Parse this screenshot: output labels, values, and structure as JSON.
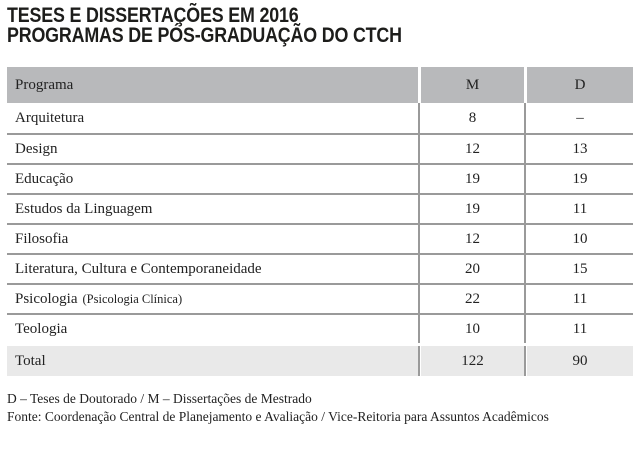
{
  "title": {
    "line1": "TESES E DISSERTAÇÕES EM 2016",
    "line2": "PROGRAMAS DE PÓS-GRADUAÇÃO DO CTCH"
  },
  "table": {
    "headers": {
      "program": "Programa",
      "m": "M",
      "d": "D"
    },
    "rows": [
      {
        "program": "Arquitetura",
        "program_note": "",
        "m": "8",
        "d": "–"
      },
      {
        "program": "Design",
        "program_note": "",
        "m": "12",
        "d": "13"
      },
      {
        "program": "Educação",
        "program_note": "",
        "m": "19",
        "d": "19"
      },
      {
        "program": "Estudos da Linguagem",
        "program_note": "",
        "m": "19",
        "d": "11"
      },
      {
        "program": "Filosofia",
        "program_note": "",
        "m": "12",
        "d": "10"
      },
      {
        "program": "Literatura, Cultura e Contemporaneidade",
        "program_note": "",
        "m": "20",
        "d": "15"
      },
      {
        "program": "Psicologia",
        "program_note": "(Psicologia Clínica)",
        "m": "22",
        "d": "11"
      },
      {
        "program": "Teologia",
        "program_note": "",
        "m": "10",
        "d": "11"
      }
    ],
    "total": {
      "label": "Total",
      "m": "122",
      "d": "90"
    }
  },
  "footnotes": {
    "legend": "D – Teses de Doutorado  /  M – Dissertações de Mestrado",
    "source": "Fonte: Coordenação Central de Planejamento e Avaliação / Vice-Reitoria para Assuntos Acadêmicos"
  },
  "colors": {
    "header_bg": "#b8b9bb",
    "total_bg": "#e9e9e9",
    "border": "#9a9a9a",
    "text": "#222222",
    "title": "#1d1d1b"
  },
  "chart_data": {
    "type": "table",
    "title": "TESES E DISSERTAÇÕES EM 2016 — PROGRAMAS DE PÓS-GRADUAÇÃO DO CTCH",
    "columns": [
      "Programa",
      "M",
      "D"
    ],
    "categories": [
      "Arquitetura",
      "Design",
      "Educação",
      "Estudos da Linguagem",
      "Filosofia",
      "Literatura, Cultura e Contemporaneidade",
      "Psicologia (Psicologia Clínica)",
      "Teologia"
    ],
    "series": [
      {
        "name": "M (Dissertações de Mestrado)",
        "values": [
          8,
          12,
          19,
          19,
          12,
          20,
          22,
          10
        ]
      },
      {
        "name": "D (Teses de Doutorado)",
        "values": [
          null,
          13,
          19,
          11,
          10,
          15,
          11,
          11
        ]
      }
    ],
    "totals": {
      "M": 122,
      "D": 90
    },
    "annotations": [
      "D – Teses de Doutorado / M – Dissertações de Mestrado",
      "Fonte: Coordenação Central de Planejamento e Avaliação / Vice-Reitoria para Assuntos Acadêmicos"
    ]
  }
}
